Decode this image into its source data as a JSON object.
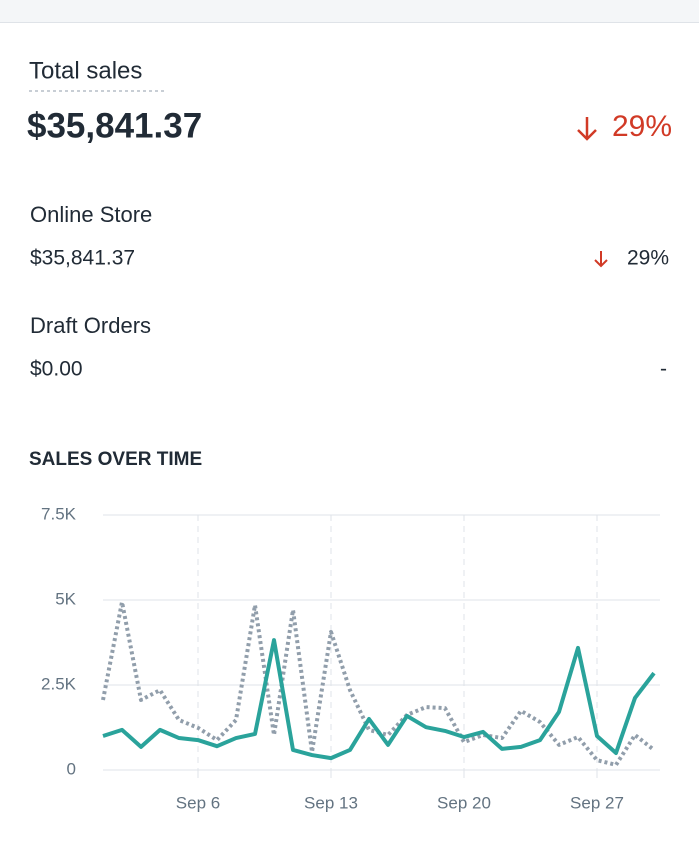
{
  "summary": {
    "title": "Total sales",
    "value": "$35,841.37",
    "change": "29%"
  },
  "channels": [
    {
      "name": "Online Store",
      "value": "$35,841.37",
      "change": "29%"
    },
    {
      "name": "Draft Orders",
      "value": "$0.00",
      "change": "-"
    }
  ],
  "chart_data": {
    "type": "line",
    "title": "SALES OVER TIME",
    "categories": [
      null,
      null,
      null,
      null,
      null,
      "Sep 6",
      null,
      null,
      null,
      null,
      null,
      null,
      "Sep 13",
      null,
      null,
      null,
      null,
      null,
      null,
      "Sep 20",
      null,
      null,
      null,
      null,
      null,
      null,
      "Sep 27",
      null,
      null,
      null
    ],
    "series": [
      {
        "color": "#2aa39b",
        "style": "solid",
        "values": [
          1000,
          1180,
          680,
          1180,
          940,
          880,
          700,
          940,
          1060,
          3820,
          590,
          440,
          350,
          590,
          1500,
          740,
          1590,
          1260,
          1150,
          970,
          1120,
          620,
          680,
          880,
          1710,
          3590,
          1000,
          500,
          2120,
          2850
        ]
      },
      {
        "color": "#919eab",
        "style": "dotted",
        "values": [
          2060,
          4940,
          2060,
          2350,
          1470,
          1240,
          880,
          1470,
          4850,
          1030,
          4710,
          530,
          4060,
          2350,
          1180,
          1030,
          1620,
          1850,
          1820,
          820,
          1030,
          940,
          1740,
          1410,
          740,
          970,
          290,
          150,
          1030,
          590
        ]
      }
    ],
    "ylim": [
      0,
      7500
    ],
    "yticks": [
      0,
      {
        "value": 2500,
        "label": "2.5K"
      },
      {
        "value": 5000,
        "label": "5K"
      },
      {
        "value": 7500,
        "label": "7.5K"
      }
    ],
    "grid": true
  }
}
